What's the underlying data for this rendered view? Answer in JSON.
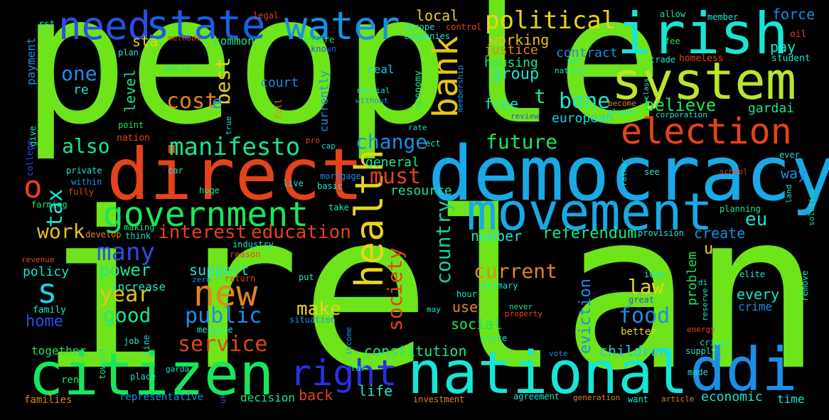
{
  "words": [
    {
      "text": "people",
      "color": "#6ee51a"
    },
    {
      "text": "ireland",
      "color": "#6ee51a"
    },
    {
      "text": "democracy",
      "color": "#19a9e6"
    },
    {
      "text": "movement",
      "color": "#19a9e6"
    },
    {
      "text": "irish",
      "color": "#17e6d6"
    },
    {
      "text": "system",
      "color": "#b8e630"
    },
    {
      "text": "direct",
      "color": "#e6421a"
    },
    {
      "text": "national",
      "color": "#17e6d6"
    },
    {
      "text": "citizen",
      "color": "#1ae65a"
    },
    {
      "text": "ddi",
      "color": "#1a8fe6"
    },
    {
      "text": "government",
      "color": "#1ae65a"
    },
    {
      "text": "state",
      "color": "#1a5ee6"
    },
    {
      "text": "need",
      "color": "#2a4fe6"
    },
    {
      "text": "water",
      "color": "#1a8fe6"
    },
    {
      "text": "election",
      "color": "#e6421a"
    },
    {
      "text": "right",
      "color": "#2a30e6"
    },
    {
      "text": "health",
      "color": "#e6d51a"
    },
    {
      "text": "new",
      "color": "#e6841a"
    },
    {
      "text": "political",
      "color": "#e6d51a"
    },
    {
      "text": "bank",
      "color": "#e6c31a"
    },
    {
      "text": "manifesto",
      "color": "#1ae68a"
    },
    {
      "text": "tax",
      "color": "#17e6d6"
    },
    {
      "text": "o",
      "color": "#e6421a"
    },
    {
      "text": "s",
      "color": "#1ad0e6"
    },
    {
      "text": "interest",
      "color": "#e6421a"
    },
    {
      "text": "education",
      "color": "#e6421a"
    },
    {
      "text": "many",
      "color": "#2a4fe6"
    },
    {
      "text": "work",
      "color": "#e6c31a"
    },
    {
      "text": "also",
      "color": "#1ae68a"
    },
    {
      "text": "change",
      "color": "#1a8fe6"
    },
    {
      "text": "must",
      "color": "#e6421a"
    },
    {
      "text": "future",
      "color": "#1ae65a"
    },
    {
      "text": "society",
      "color": "#e6421a"
    },
    {
      "text": "country",
      "color": "#1ad0a6"
    },
    {
      "text": "current",
      "color": "#e6841a"
    },
    {
      "text": "law",
      "color": "#e6d51a"
    },
    {
      "text": "referendum",
      "color": "#1ae68a"
    },
    {
      "text": "service",
      "color": "#e6421a"
    },
    {
      "text": "public",
      "color": "#1a8fe6"
    },
    {
      "text": "food",
      "color": "#1a8fe6"
    },
    {
      "text": "make",
      "color": "#e6d51a"
    },
    {
      "text": "year",
      "color": "#e6c31a"
    },
    {
      "text": "power",
      "color": "#1ae68a"
    },
    {
      "text": "good",
      "color": "#1ae68a"
    },
    {
      "text": "one",
      "color": "#1a8fe6"
    },
    {
      "text": "cost",
      "color": "#e6841a"
    },
    {
      "text": "best",
      "color": "#e6d51a"
    },
    {
      "text": "e",
      "color": "#1a8fe6"
    },
    {
      "text": "bene",
      "color": "#1ae6d0"
    },
    {
      "text": "believe",
      "color": "#1ae65a"
    },
    {
      "text": "t",
      "color": "#1ae68a"
    },
    {
      "text": "eu",
      "color": "#1ae6d0"
    },
    {
      "text": "u",
      "color": "#e6d51a"
    },
    {
      "text": "every",
      "color": "#1ae6d0"
    },
    {
      "text": "eviction",
      "color": "#1a8fe6"
    },
    {
      "text": "constitution",
      "color": "#1ae68a"
    },
    {
      "text": "children",
      "color": "#1ad0e6"
    },
    {
      "text": "support",
      "color": "#1ae6d0"
    },
    {
      "text": "home",
      "color": "#2a4fe6"
    },
    {
      "text": "social",
      "color": "#1ae65a"
    },
    {
      "text": "use",
      "color": "#e6841a"
    },
    {
      "text": "back",
      "color": "#e6421a"
    },
    {
      "text": "life",
      "color": "#1ae6d0"
    },
    {
      "text": "economic",
      "color": "#1ae6d0"
    },
    {
      "text": "pay",
      "color": "#1ae6d0"
    },
    {
      "text": "contract",
      "color": "#1a8fe6"
    },
    {
      "text": "working",
      "color": "#e6c31a"
    },
    {
      "text": "group",
      "color": "#1ae6d0"
    },
    {
      "text": "housing",
      "color": "#1ae68a"
    },
    {
      "text": "justice",
      "color": "#e6841a"
    },
    {
      "text": "local",
      "color": "#e6d51a"
    },
    {
      "text": "free",
      "color": "#1ae6d0"
    },
    {
      "text": "european",
      "color": "#1ad0e6"
    },
    {
      "text": "general",
      "color": "#1ae68a"
    },
    {
      "text": "resource",
      "color": "#1ae68a"
    },
    {
      "text": "create",
      "color": "#1a8fe6"
    },
    {
      "text": "number",
      "color": "#1ae6d0"
    },
    {
      "text": "level",
      "color": "#1ae68a"
    },
    {
      "text": "policy",
      "color": "#1ae6d0"
    },
    {
      "text": "sta",
      "color": "#e6d51a"
    },
    {
      "text": "force",
      "color": "#1a8fe6"
    },
    {
      "text": "way",
      "color": "#1a8fe6"
    },
    {
      "text": "problem",
      "color": "#1ae65a"
    },
    {
      "text": "gardai",
      "color": "#1ae68a"
    },
    {
      "text": "crime",
      "color": "#1a8fe6"
    },
    {
      "text": "court",
      "color": "#1a8fe6"
    },
    {
      "text": "together",
      "color": "#1ae65a"
    },
    {
      "text": "decision",
      "color": "#1ae68a"
    },
    {
      "text": "time",
      "color": "#1ae6d0"
    },
    {
      "text": "re",
      "color": "#1ae6d0"
    },
    {
      "text": "increase",
      "color": "#1ae6d0"
    },
    {
      "text": "payment",
      "color": "#1a8fe6"
    },
    {
      "text": "common",
      "color": "#1ae68a"
    },
    {
      "text": "real",
      "color": "#1ad0e6"
    },
    {
      "text": "currently",
      "color": "#1a8fe6"
    },
    {
      "text": "rent",
      "color": "#1ae65a"
    },
    {
      "text": "better",
      "color": "#e6d51a"
    },
    {
      "text": "families",
      "color": "#e6841a"
    },
    {
      "text": "representative",
      "color": "#1a8fe6"
    },
    {
      "text": "family",
      "color": "#1ae6d0"
    },
    {
      "text": "legal",
      "color": "#e6421a"
    },
    {
      "text": "methods",
      "color": "#e6421a"
    },
    {
      "text": "rst",
      "color": "#1ae6d0"
    },
    {
      "text": "ensure",
      "color": "#1ae65a"
    },
    {
      "text": "known",
      "color": "#2a4fe6"
    },
    {
      "text": "europe",
      "color": "#1ae6d0"
    },
    {
      "text": "control",
      "color": "#e6421a"
    },
    {
      "text": "companies",
      "color": "#1ae6d0"
    },
    {
      "text": "allow",
      "color": "#1ae68a"
    },
    {
      "text": "member",
      "color": "#1ae6d0"
    },
    {
      "text": "oil",
      "color": "#e6421a"
    },
    {
      "text": "student",
      "color": "#1ae6d0"
    },
    {
      "text": "fee",
      "color": "#1ae65a"
    },
    {
      "text": "trade",
      "color": "#1ae6d0"
    },
    {
      "text": "homeless",
      "color": "#e6421a"
    },
    {
      "text": "plan",
      "color": "#1ae6d0"
    },
    {
      "text": "world",
      "color": "#1ae68a"
    },
    {
      "text": "point",
      "color": "#1ae65a"
    },
    {
      "text": "nation",
      "color": "#e6421a"
    },
    {
      "text": "give",
      "color": "#1ae6d0"
    },
    {
      "text": "college",
      "color": "#2a4fe6"
    },
    {
      "text": "private",
      "color": "#1ae6d0"
    },
    {
      "text": "within",
      "color": "#1a8fe6"
    },
    {
      "text": "fully",
      "color": "#e6421a"
    },
    {
      "text": "farming",
      "color": "#1ae68a"
    },
    {
      "text": "car",
      "color": "#1ae6d0"
    },
    {
      "text": "huge",
      "color": "#1ae68a"
    },
    {
      "text": "mortgage",
      "color": "#1a8fe6"
    },
    {
      "text": "basic",
      "color": "#1ae6d0"
    },
    {
      "text": "live",
      "color": "#1ae6d0"
    },
    {
      "text": "take",
      "color": "#1ae6d0"
    },
    {
      "text": "develop",
      "color": "#e6841a"
    },
    {
      "text": "think",
      "color": "#1ae6d0"
    },
    {
      "text": "making",
      "color": "#1ae68a"
    },
    {
      "text": "revenue",
      "color": "#e6421a"
    },
    {
      "text": "industry",
      "color": "#1ae6d0"
    },
    {
      "text": "reason",
      "color": "#e6421a"
    },
    {
      "text": "zero",
      "color": "#1a8fe6"
    },
    {
      "text": "return",
      "color": "#e6421a"
    },
    {
      "text": "put",
      "color": "#1ae6d0"
    },
    {
      "text": "hour",
      "color": "#1ae6d0"
    },
    {
      "text": "primary",
      "color": "#1ae6d0"
    },
    {
      "text": "may",
      "color": "#1ae6d0"
    },
    {
      "text": "situation",
      "color": "#1a8fe6"
    },
    {
      "text": "measure",
      "color": "#1ae6d0"
    },
    {
      "text": "job",
      "color": "#1ae6d0"
    },
    {
      "text": "line",
      "color": "#1ae6d0"
    },
    {
      "text": "toward",
      "color": "#1ae68a"
    },
    {
      "text": "place",
      "color": "#1ae6d0"
    },
    {
      "text": "garda",
      "color": "#1ae6d0"
    },
    {
      "text": "income",
      "color": "#1a8fe6"
    },
    {
      "text": "far",
      "color": "#1ae6d0"
    },
    {
      "text": "since",
      "color": "#1ae6d0"
    },
    {
      "text": "investment",
      "color": "#e6841a"
    },
    {
      "text": "agreement",
      "color": "#1ae6d0"
    },
    {
      "text": "generation",
      "color": "#e6841a"
    },
    {
      "text": "want",
      "color": "#1ae6d0"
    },
    {
      "text": "article",
      "color": "#e6841a"
    },
    {
      "text": "vote",
      "color": "#1a8fe6"
    },
    {
      "text": "made",
      "color": "#1ae6d0"
    },
    {
      "text": "supply",
      "color": "#1ae6d0"
    },
    {
      "text": "crisis",
      "color": "#1ae6d0"
    },
    {
      "text": "energy",
      "color": "#e6421a"
    },
    {
      "text": "reserve",
      "color": "#1ae6d0"
    },
    {
      "text": "great",
      "color": "#2a4fe6"
    },
    {
      "text": "never",
      "color": "#1ae68a"
    },
    {
      "text": "property",
      "color": "#e6421a"
    },
    {
      "text": "idea",
      "color": "#1ae6d0"
    },
    {
      "text": "elite",
      "color": "#1ae6d0"
    },
    {
      "text": "di",
      "color": "#1ae6d0"
    },
    {
      "text": "remove",
      "color": "#1ae6d0"
    },
    {
      "text": "provision",
      "color": "#1ae6d0"
    },
    {
      "text": "solution",
      "color": "#1ae68a"
    },
    {
      "text": "planning",
      "color": "#1ae68a"
    },
    {
      "text": "school",
      "color": "#e6421a"
    },
    {
      "text": "ever",
      "color": "#1ae6d0"
    },
    {
      "text": "see",
      "color": "#1ae6d0"
    },
    {
      "text": "land",
      "color": "#1ae6d0"
    },
    {
      "text": "rather",
      "color": "#1ae6d0"
    },
    {
      "text": "corporation",
      "color": "#1ae6d0"
    },
    {
      "text": "always",
      "color": "#1ae6d0"
    },
    {
      "text": "become",
      "color": "#e6841a"
    },
    {
      "text": "class",
      "color": "#1ae6d0"
    },
    {
      "text": "review",
      "color": "#2a4fe6"
    },
    {
      "text": "natural",
      "color": "#1ae6d0"
    },
    {
      "text": "set",
      "color": "#1ae6d0"
    },
    {
      "text": "nancial",
      "color": "#1ae6d0"
    },
    {
      "text": "without",
      "color": "#1a8fe6"
    },
    {
      "text": "economy",
      "color": "#1ae68a"
    },
    {
      "text": "membership",
      "color": "#1a8fe6"
    },
    {
      "text": "full",
      "color": "#e6841a"
    },
    {
      "text": "true",
      "color": "#1ae6d0"
    },
    {
      "text": "pro",
      "color": "#e6421a"
    },
    {
      "text": "cap",
      "color": "#1ae6d0"
    },
    {
      "text": "ect",
      "color": "#1ae6d0"
    },
    {
      "text": "rate",
      "color": "#1ae6d0"
    },
    {
      "text": "uk",
      "color": "#2a4fe6"
    }
  ]
}
